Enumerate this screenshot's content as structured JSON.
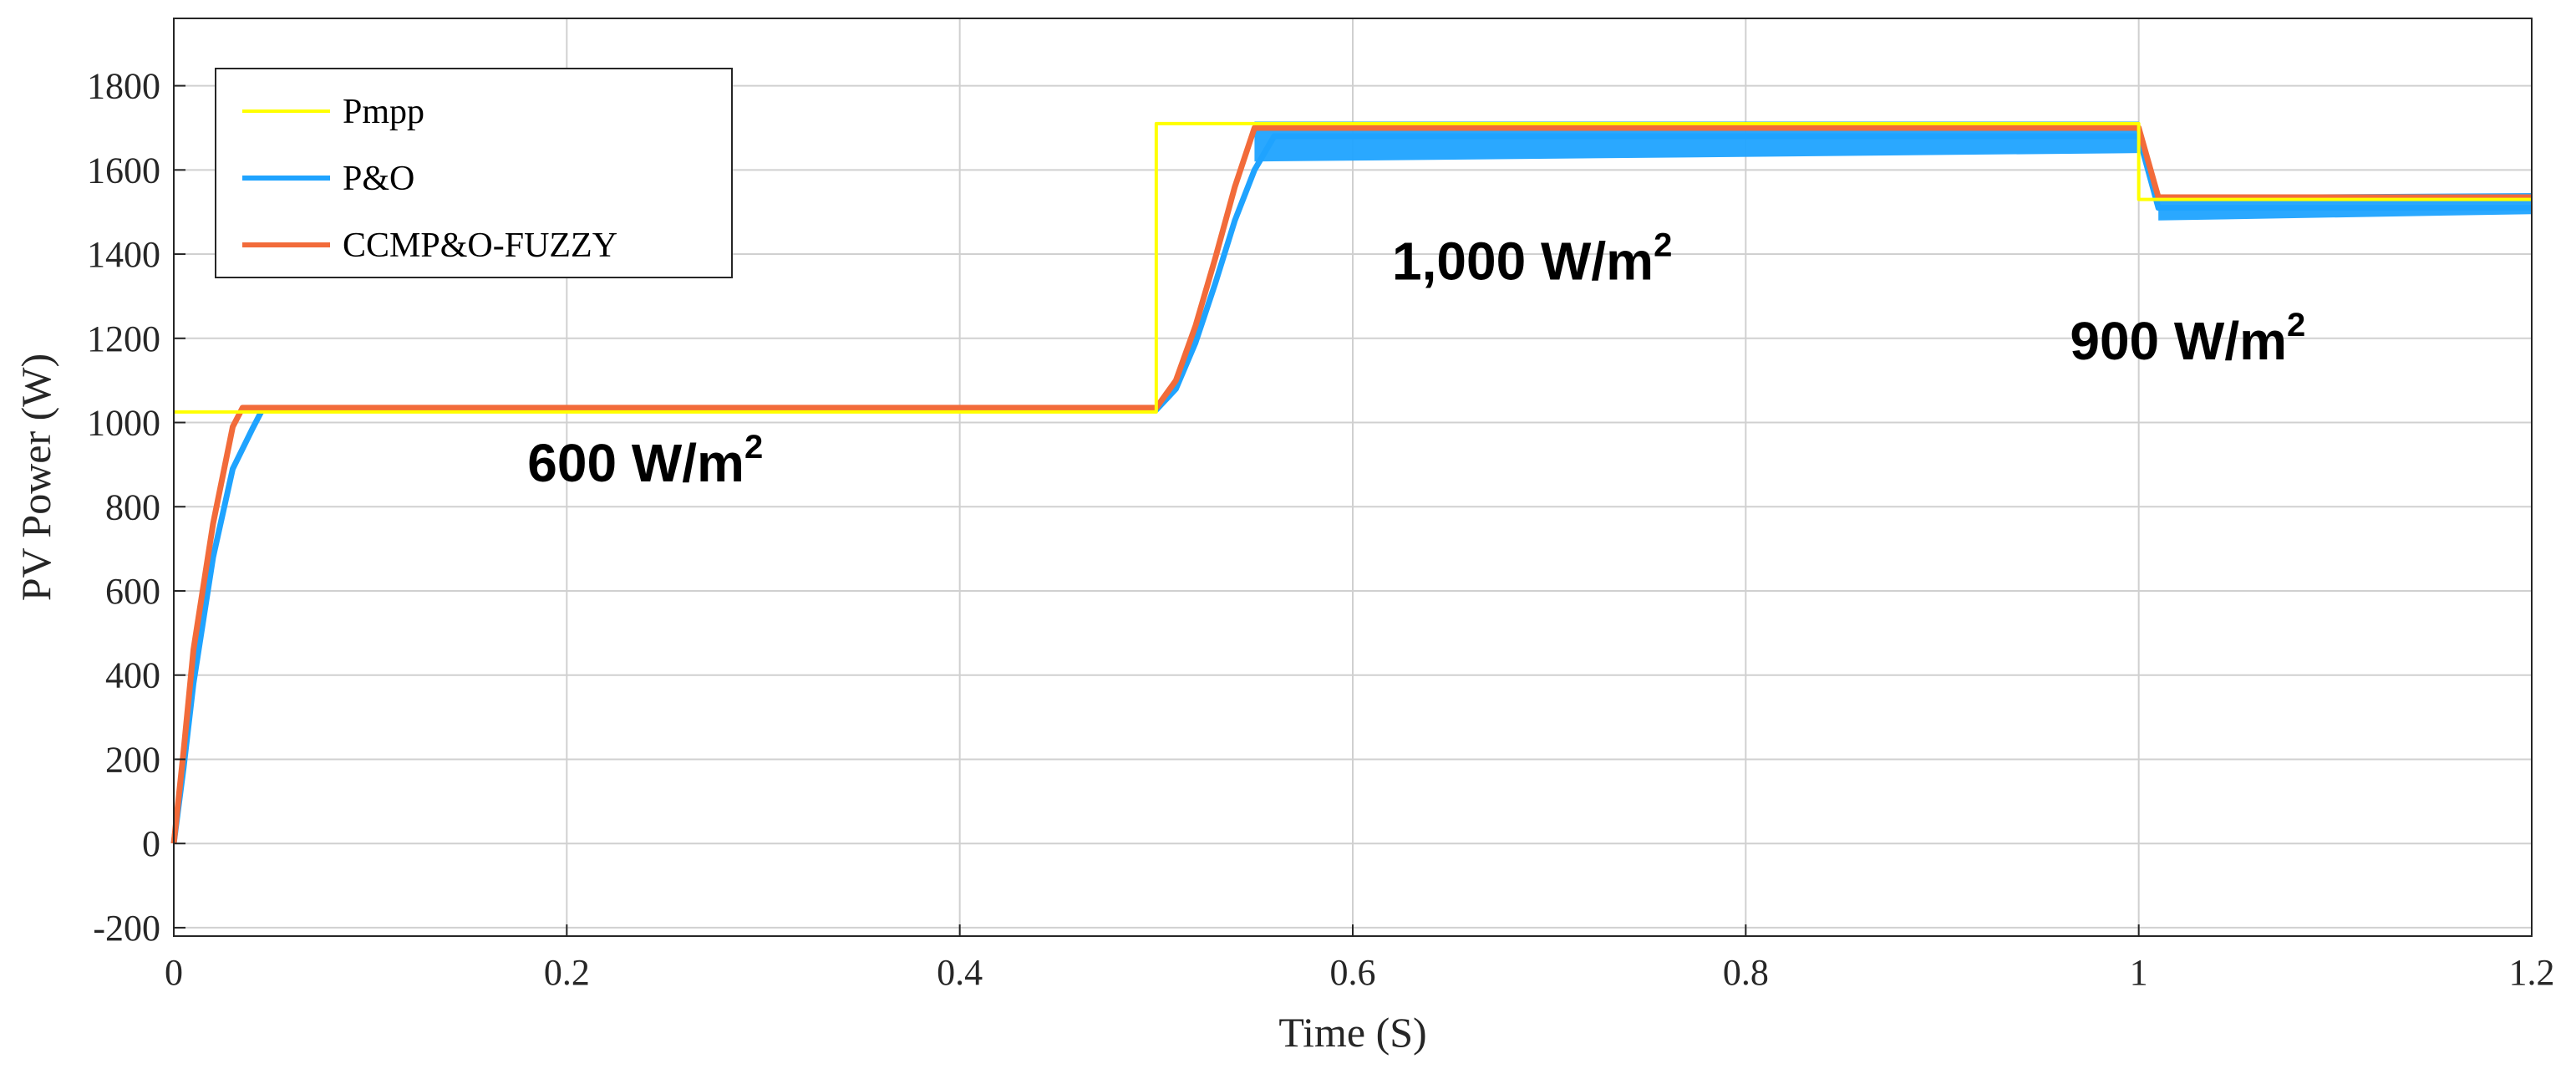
{
  "chart_data": {
    "type": "line",
    "title": "",
    "xlabel": "Time (S)",
    "ylabel": "PV Power (W)",
    "xlim": [
      0,
      1.2
    ],
    "ylim": [
      -220,
      1960
    ],
    "grid": true,
    "legend_position": "top-left",
    "x_ticks": [
      "0",
      "0.2",
      "0.4",
      "0.6",
      "0.8",
      "1",
      "1.2"
    ],
    "y_ticks": [
      "-200",
      "0",
      "200",
      "400",
      "600",
      "800",
      "1000",
      "1200",
      "1400",
      "1600",
      "1800"
    ],
    "colors": {
      "Pmpp": "#ffff00",
      "P&O": "#1fa3ff",
      "CCMP&O-FUZZY": "#f26b3a"
    },
    "series": [
      {
        "name": "Pmpp",
        "points": [
          [
            0,
            1025
          ],
          [
            0.5,
            1025
          ],
          [
            0.5,
            1710
          ],
          [
            1.0,
            1710
          ],
          [
            1.0,
            1530
          ],
          [
            1.2,
            1530
          ]
        ]
      },
      {
        "name": "P&O",
        "points": [
          [
            0,
            0
          ],
          [
            0.005,
            180
          ],
          [
            0.01,
            380
          ],
          [
            0.02,
            680
          ],
          [
            0.03,
            890
          ],
          [
            0.04,
            985
          ],
          [
            0.045,
            1030
          ],
          [
            0.05,
            1030
          ],
          [
            0.5,
            1030
          ],
          [
            0.51,
            1080
          ],
          [
            0.52,
            1190
          ],
          [
            0.53,
            1330
          ],
          [
            0.54,
            1480
          ],
          [
            0.55,
            1600
          ],
          [
            0.56,
            1680
          ],
          [
            1.0,
            1680
          ],
          [
            1.01,
            1510
          ],
          [
            1.2,
            1510
          ]
        ],
        "band": [
          [
            0.55,
            1620,
            1715
          ],
          [
            1.0,
            1640,
            1715
          ],
          [
            1.01,
            1480,
            1540
          ],
          [
            1.2,
            1495,
            1545
          ]
        ]
      },
      {
        "name": "CCMP&O-FUZZY",
        "points": [
          [
            0,
            0
          ],
          [
            0.005,
            220
          ],
          [
            0.01,
            460
          ],
          [
            0.02,
            760
          ],
          [
            0.03,
            990
          ],
          [
            0.035,
            1035
          ],
          [
            0.5,
            1035
          ],
          [
            0.51,
            1100
          ],
          [
            0.52,
            1230
          ],
          [
            0.53,
            1390
          ],
          [
            0.54,
            1560
          ],
          [
            0.55,
            1700
          ],
          [
            1.0,
            1700
          ],
          [
            1.01,
            1535
          ],
          [
            1.2,
            1535
          ]
        ]
      }
    ],
    "annotations": [
      {
        "text": "600  W/m",
        "sup": "2",
        "x": 0.18,
        "y": 860
      },
      {
        "text": "1,000  W/m",
        "sup": "2",
        "x": 0.62,
        "y": 1340
      },
      {
        "text": "900  W/m",
        "sup": "2",
        "x": 0.965,
        "y": 1150
      }
    ]
  }
}
